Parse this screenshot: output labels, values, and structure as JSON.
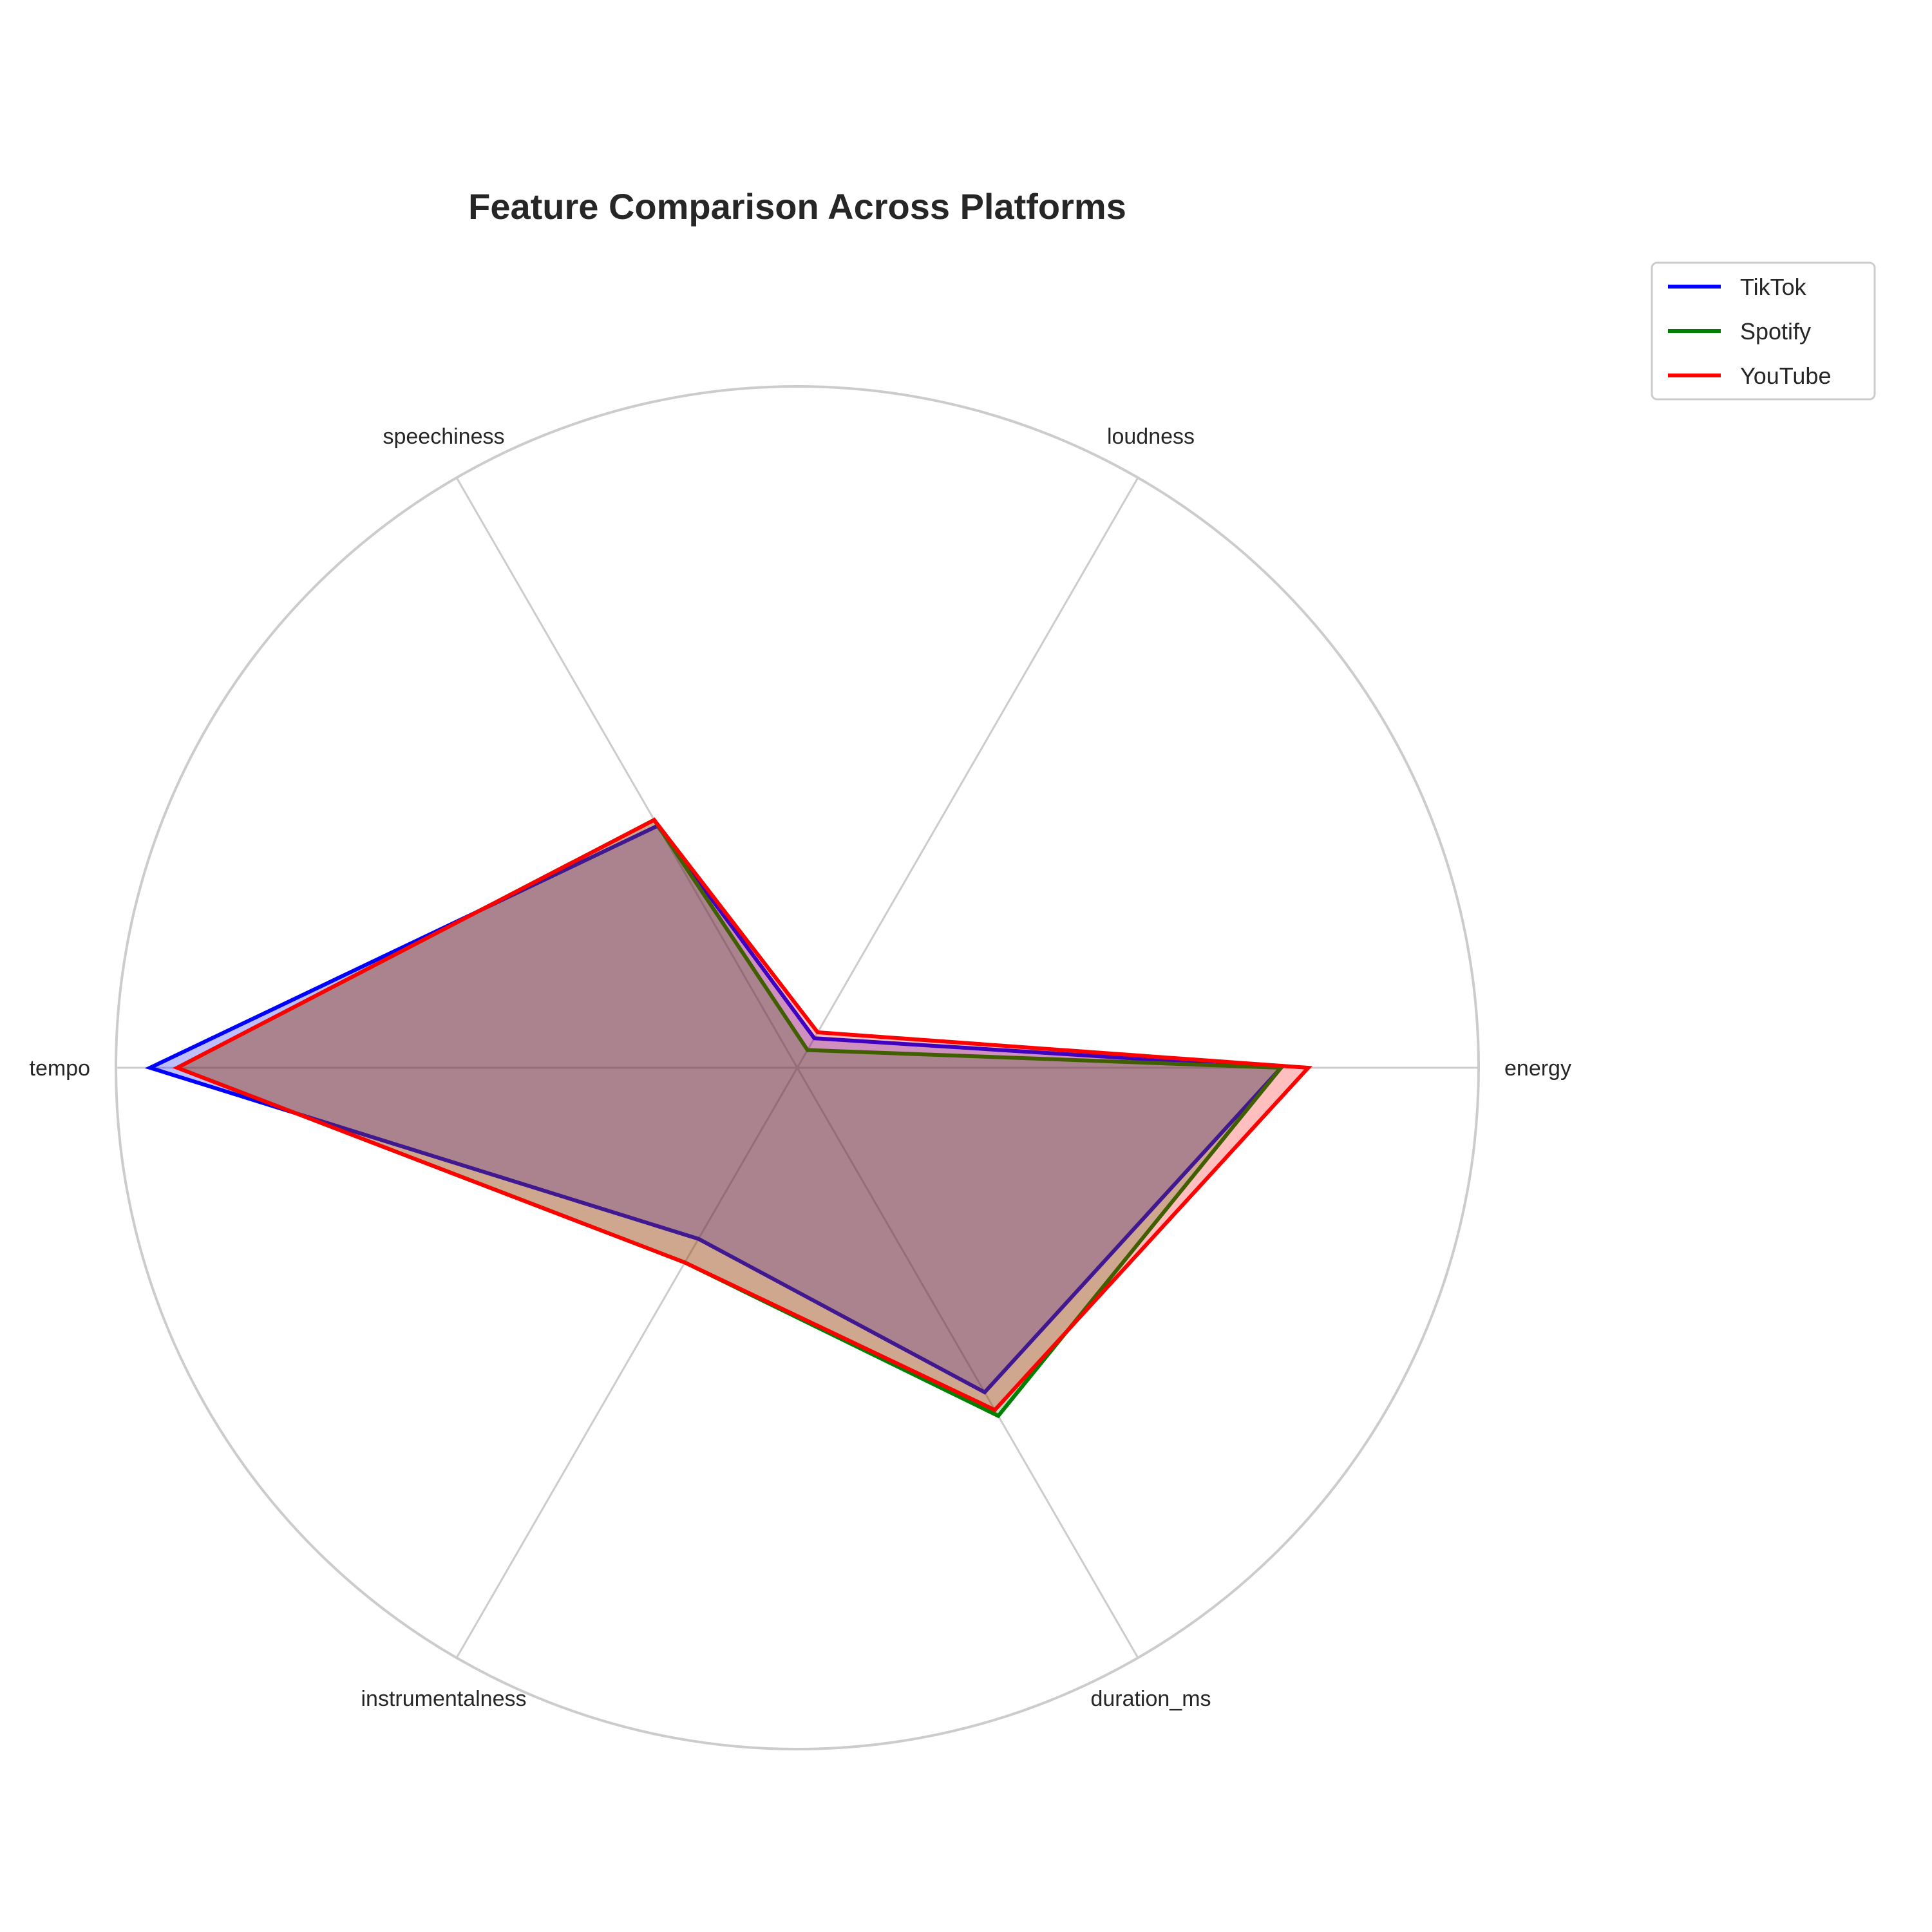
{
  "chart_data": {
    "type": "radar",
    "title": "Feature Comparison Across Platforms",
    "axes": [
      "energy",
      "loudness",
      "speechiness",
      "tempo",
      "instrumentalness",
      "duration_ms"
    ],
    "rmax": 1.0,
    "grid": true,
    "legend_position": "top-right, outside plot",
    "series": [
      {
        "name": "TikTok",
        "color": "#0000ff",
        "values": [
          0.71,
          0.05,
          0.41,
          0.95,
          0.29,
          0.55
        ]
      },
      {
        "name": "Spotify",
        "color": "#008000",
        "values": [
          0.71,
          0.03,
          0.42,
          0.91,
          0.33,
          0.59
        ]
      },
      {
        "name": "YouTube",
        "color": "#ff0000",
        "values": [
          0.75,
          0.06,
          0.42,
          0.91,
          0.33,
          0.58
        ]
      }
    ]
  }
}
